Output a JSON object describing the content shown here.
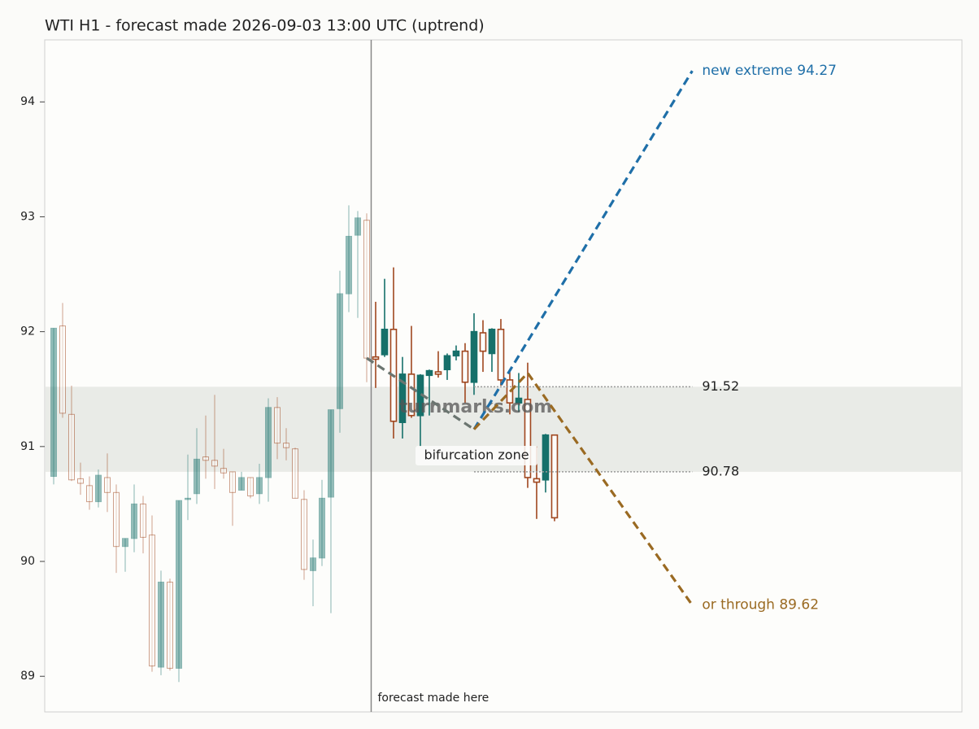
{
  "chart_data": {
    "type": "candlestick",
    "title": "WTI H1 - forecast made 2026-09-03 13:00 UTC (uptrend)",
    "xlim": [
      -1,
      101.55
    ],
    "ylim": [
      88.69,
      94.54
    ],
    "yticks": [
      89,
      90,
      91,
      92,
      93,
      94
    ],
    "up_color": "#16706a",
    "down_color": "#a0471f",
    "history": {
      "x": [
        0,
        1,
        2,
        3,
        4,
        5,
        6,
        7,
        8,
        9,
        10,
        11,
        12,
        13,
        14,
        15,
        16,
        17,
        18,
        19,
        20,
        21,
        22,
        23,
        24,
        25,
        26,
        27,
        28,
        29,
        30,
        31,
        32,
        33,
        34,
        35
      ],
      "open": [
        90.74,
        92.05,
        91.28,
        90.72,
        90.66,
        90.52,
        90.73,
        90.6,
        90.13,
        90.2,
        90.5,
        90.23,
        89.08,
        89.82,
        89.07,
        90.54,
        90.59,
        90.91,
        90.88,
        90.81,
        90.78,
        90.62,
        90.73,
        90.59,
        90.73,
        91.34,
        91.03,
        90.98,
        90.54,
        89.92,
        90.03,
        90.56,
        91.33,
        92.33,
        92.84,
        92.97
      ],
      "high": [
        92.03,
        92.25,
        91.53,
        90.86,
        90.74,
        90.8,
        90.94,
        90.67,
        90.2,
        90.67,
        90.57,
        90.4,
        89.92,
        89.85,
        90.53,
        90.93,
        91.16,
        91.27,
        91.45,
        90.98,
        90.78,
        90.78,
        90.73,
        90.85,
        91.42,
        91.43,
        91.16,
        90.99,
        90.62,
        90.19,
        90.71,
        91.32,
        92.53,
        93.1,
        93.05,
        93.03
      ],
      "low": [
        90.67,
        91.25,
        90.7,
        90.58,
        90.45,
        90.47,
        90.43,
        89.9,
        89.91,
        90.08,
        90.07,
        89.04,
        89.01,
        89.05,
        88.95,
        90.36,
        90.5,
        90.72,
        90.63,
        90.72,
        90.31,
        90.62,
        90.55,
        90.5,
        90.52,
        90.89,
        90.88,
        90.55,
        89.84,
        89.61,
        89.96,
        89.55,
        91.12,
        92.17,
        92.12,
        91.56
      ],
      "close": [
        92.03,
        91.29,
        90.71,
        90.68,
        90.52,
        90.75,
        90.6,
        90.13,
        90.2,
        90.5,
        90.21,
        89.09,
        89.82,
        89.07,
        90.53,
        90.55,
        90.89,
        90.88,
        90.83,
        90.77,
        90.6,
        90.73,
        90.57,
        90.73,
        91.34,
        91.03,
        90.99,
        90.55,
        89.93,
        90.03,
        90.55,
        91.32,
        92.33,
        92.83,
        92.99,
        91.77
      ]
    },
    "forecast_candles": {
      "x": [
        36,
        37,
        38,
        39,
        40,
        41,
        42,
        43,
        44,
        45,
        46,
        47,
        48,
        49,
        50,
        51,
        52,
        53,
        54,
        55,
        56
      ],
      "open": [
        91.78,
        91.8,
        92.02,
        91.21,
        91.63,
        91.27,
        91.62,
        91.65,
        91.67,
        91.79,
        91.83,
        91.56,
        91.99,
        91.81,
        92.02,
        91.58,
        91.38,
        91.41,
        90.72,
        90.71,
        91.1
      ],
      "high": [
        92.26,
        92.46,
        92.56,
        91.78,
        92.05,
        91.63,
        91.67,
        91.83,
        91.81,
        91.88,
        91.9,
        92.16,
        92.1,
        92.03,
        92.11,
        91.66,
        91.64,
        91.73,
        91.0,
        91.11,
        91.1
      ],
      "low": [
        91.51,
        91.78,
        91.07,
        91.07,
        91.25,
        91.0,
        91.27,
        91.6,
        91.58,
        91.75,
        91.38,
        91.45,
        91.65,
        91.65,
        91.53,
        91.28,
        91.3,
        90.64,
        90.37,
        90.6,
        90.35
      ],
      "close": [
        91.76,
        92.02,
        91.22,
        91.63,
        91.27,
        91.62,
        91.66,
        91.63,
        91.79,
        91.83,
        91.56,
        92.0,
        91.83,
        92.02,
        91.58,
        91.38,
        91.42,
        90.73,
        90.69,
        91.1,
        90.38
      ]
    },
    "forecast_line": {
      "x": 35.5,
      "label": "forecast made here"
    },
    "zone": {
      "low": 90.78,
      "high": 91.52,
      "x": [
        47,
        71.4
      ],
      "label": "bifurcation zone"
    },
    "base_path": {
      "color": "#6b7570",
      "x": [
        35,
        47
      ],
      "y": [
        91.77,
        91.15
      ]
    },
    "paths": [
      {
        "label": "new extreme 94.27",
        "color": "#1f6fa8",
        "x": [
          47,
          71.4
        ],
        "y": [
          91.15,
          94.27
        ]
      },
      {
        "label": "or through 89.62",
        "color": "#9a6a22",
        "x": [
          47,
          53,
          71.4
        ],
        "y": [
          91.15,
          91.64,
          89.62
        ]
      }
    ],
    "watermark": "turnmarks.com"
  }
}
